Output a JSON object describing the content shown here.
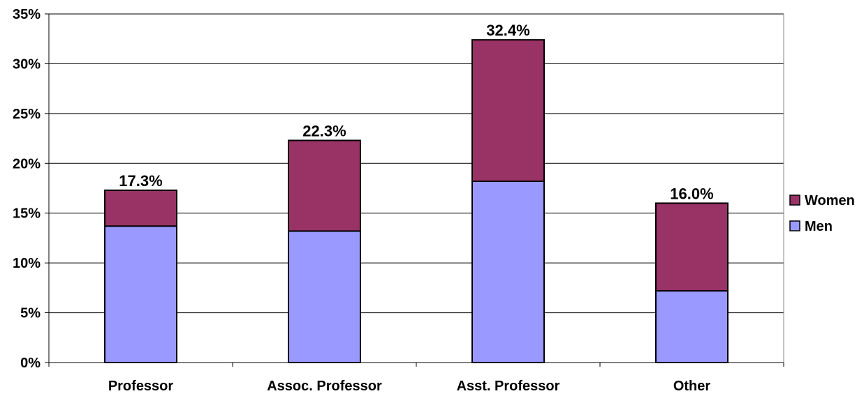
{
  "chart_data": {
    "type": "bar",
    "stacked": true,
    "categories": [
      "Professor",
      "Assoc. Professor",
      "Asst. Professor",
      "Other"
    ],
    "series": [
      {
        "name": "Men",
        "values": [
          13.7,
          13.2,
          18.2,
          7.2
        ],
        "color": "#9999ff"
      },
      {
        "name": "Women",
        "values": [
          3.6,
          9.1,
          14.2,
          8.8
        ],
        "color": "#993366"
      }
    ],
    "totals": [
      17.3,
      22.3,
      32.4,
      16.0
    ],
    "total_labels": [
      "17.3%",
      "22.3%",
      "32.4%",
      "16.0%"
    ],
    "ylim": [
      0,
      35
    ],
    "y_ticks": [
      0,
      5,
      10,
      15,
      20,
      25,
      30,
      35
    ],
    "y_tick_labels": [
      "0%",
      "5%",
      "10%",
      "15%",
      "20%",
      "25%",
      "30%",
      "35%"
    ],
    "grid": true,
    "legend": {
      "position": "right",
      "entries": [
        "Women",
        "Men"
      ]
    },
    "title": "",
    "xlabel": "",
    "ylabel": ""
  }
}
